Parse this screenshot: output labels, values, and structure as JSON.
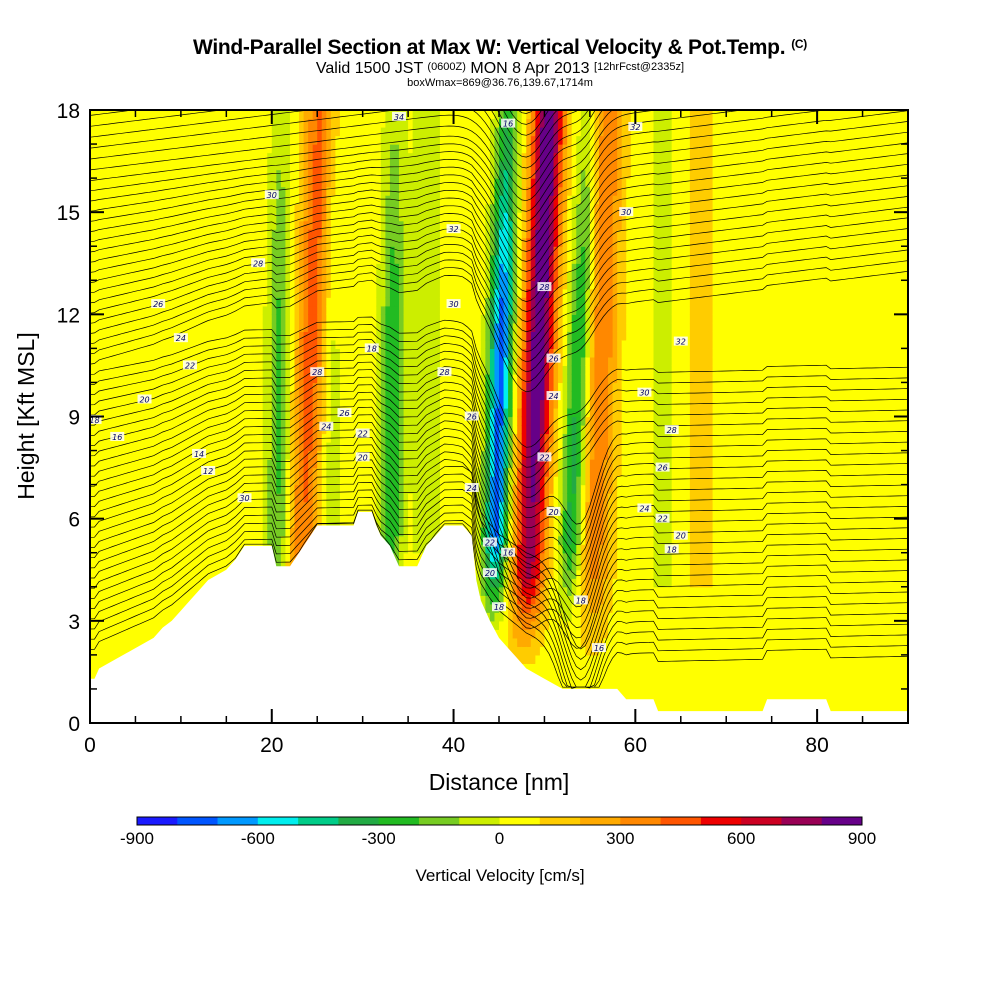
{
  "title": {
    "main": "Wind-Parallel Section at Max W: Vertical Velocity & Pot.Temp.",
    "main_suffix": "(C)",
    "valid_a": "Valid 1500 JST",
    "valid_b": "(0600Z)",
    "valid_c": "MON 8 Apr 2013",
    "valid_d": "[12hrFcst@2335z]",
    "box": "boxWmax=869@36.76,139.67,1714m"
  },
  "chart_data": {
    "type": "heatmap",
    "xlabel": "Distance [nm]",
    "ylabel": "Height [Kft MSL]",
    "xlim": [
      0,
      90
    ],
    "ylim": [
      0,
      18
    ],
    "xticks": [
      0,
      20,
      40,
      60,
      80
    ],
    "yticks": [
      0,
      3,
      6,
      9,
      12,
      15,
      18
    ],
    "colorbar": {
      "label": "Vertical Velocity [cm/s]",
      "range": [
        -900,
        900
      ],
      "tick_values": [
        -900,
        -600,
        -300,
        0,
        300,
        600,
        900
      ],
      "tick_labels": [
        "-900",
        "-600",
        "-300",
        "0",
        "300",
        "600",
        "900"
      ],
      "colors": [
        "#1a1aff",
        "#0055ff",
        "#0099ff",
        "#00eeee",
        "#00cc88",
        "#22aa44",
        "#22bb22",
        "#77cc22",
        "#ccee00",
        "#ffff00",
        "#ffcc00",
        "#ffaa00",
        "#ff8800",
        "#ff5500",
        "#ee0000",
        "#cc0022",
        "#990055",
        "#660088"
      ]
    },
    "terrain": [
      [
        0,
        1.3
      ],
      [
        0.5,
        1.3
      ],
      [
        1,
        1.6
      ],
      [
        3,
        1.9
      ],
      [
        5,
        2.2
      ],
      [
        7,
        2.5
      ],
      [
        8,
        2.8
      ],
      [
        9,
        3.0
      ],
      [
        10,
        3.3
      ],
      [
        11,
        3.6
      ],
      [
        12,
        3.9
      ],
      [
        13,
        4.2
      ],
      [
        15,
        4.5
      ],
      [
        16,
        4.8
      ],
      [
        17,
        5.2
      ],
      [
        19,
        5.2
      ],
      [
        20,
        5.2
      ],
      [
        20.5,
        4.6
      ],
      [
        22,
        4.6
      ],
      [
        23,
        5.0
      ],
      [
        24,
        5.4
      ],
      [
        25,
        5.8
      ],
      [
        29,
        5.8
      ],
      [
        29.5,
        6.2
      ],
      [
        31,
        6.2
      ],
      [
        31.5,
        5.8
      ],
      [
        32,
        5.5
      ],
      [
        33,
        5.2
      ],
      [
        34,
        4.6
      ],
      [
        36,
        4.6
      ],
      [
        37,
        5.2
      ],
      [
        38,
        5.5
      ],
      [
        39,
        5.8
      ],
      [
        41,
        5.8
      ],
      [
        42,
        5.5
      ],
      [
        42.5,
        4.2
      ],
      [
        43,
        3.6
      ],
      [
        44,
        3.0
      ],
      [
        45,
        2.5
      ],
      [
        46,
        2.2
      ],
      [
        47,
        1.9
      ],
      [
        48,
        1.6
      ],
      [
        50,
        1.3
      ],
      [
        52,
        1.0
      ],
      [
        58,
        1.0
      ],
      [
        59,
        0.7
      ],
      [
        62,
        0.7
      ],
      [
        62.5,
        0.35
      ],
      [
        74,
        0.35
      ],
      [
        74.5,
        0.7
      ],
      [
        81,
        0.7
      ],
      [
        81.5,
        0.35
      ],
      [
        90,
        0.35
      ]
    ],
    "updrafts": [
      {
        "x_bottom": 47.5,
        "x_top": 50.5,
        "w_max": 869
      },
      {
        "x_bottom": 22.5,
        "x_top": 25.5,
        "w_max": 400
      },
      {
        "x_bottom": 55.0,
        "x_top": 57.0,
        "w_max": 350
      }
    ],
    "downdrafts": [
      {
        "x_bottom": 44.0,
        "x_top": 46.0,
        "w_min": -800
      },
      {
        "x_bottom": 33.0,
        "x_top": 33.5,
        "w_min": -330
      },
      {
        "x_bottom": 52.0,
        "x_top": 55.0,
        "w_min": -400
      },
      {
        "x_bottom": 20.5,
        "x_top": 21.0,
        "w_min": -280
      }
    ],
    "contour_labels": [
      "34",
      "30",
      "28",
      "26",
      "24",
      "22",
      "20",
      "18",
      "16",
      "14",
      "12",
      "30",
      "28",
      "26",
      "24",
      "22",
      "20",
      "18",
      "16",
      "32",
      "30",
      "28",
      "26",
      "24",
      "22",
      "20",
      "18",
      "16",
      "32",
      "30",
      "28",
      "26",
      "24",
      "22",
      "20",
      "18",
      "16",
      "32",
      "30",
      "28",
      "26",
      "24",
      "22",
      "20",
      "18"
    ],
    "contour_values": [
      12,
      14,
      16,
      18,
      20,
      22,
      24,
      26,
      28,
      30,
      32,
      34
    ]
  }
}
